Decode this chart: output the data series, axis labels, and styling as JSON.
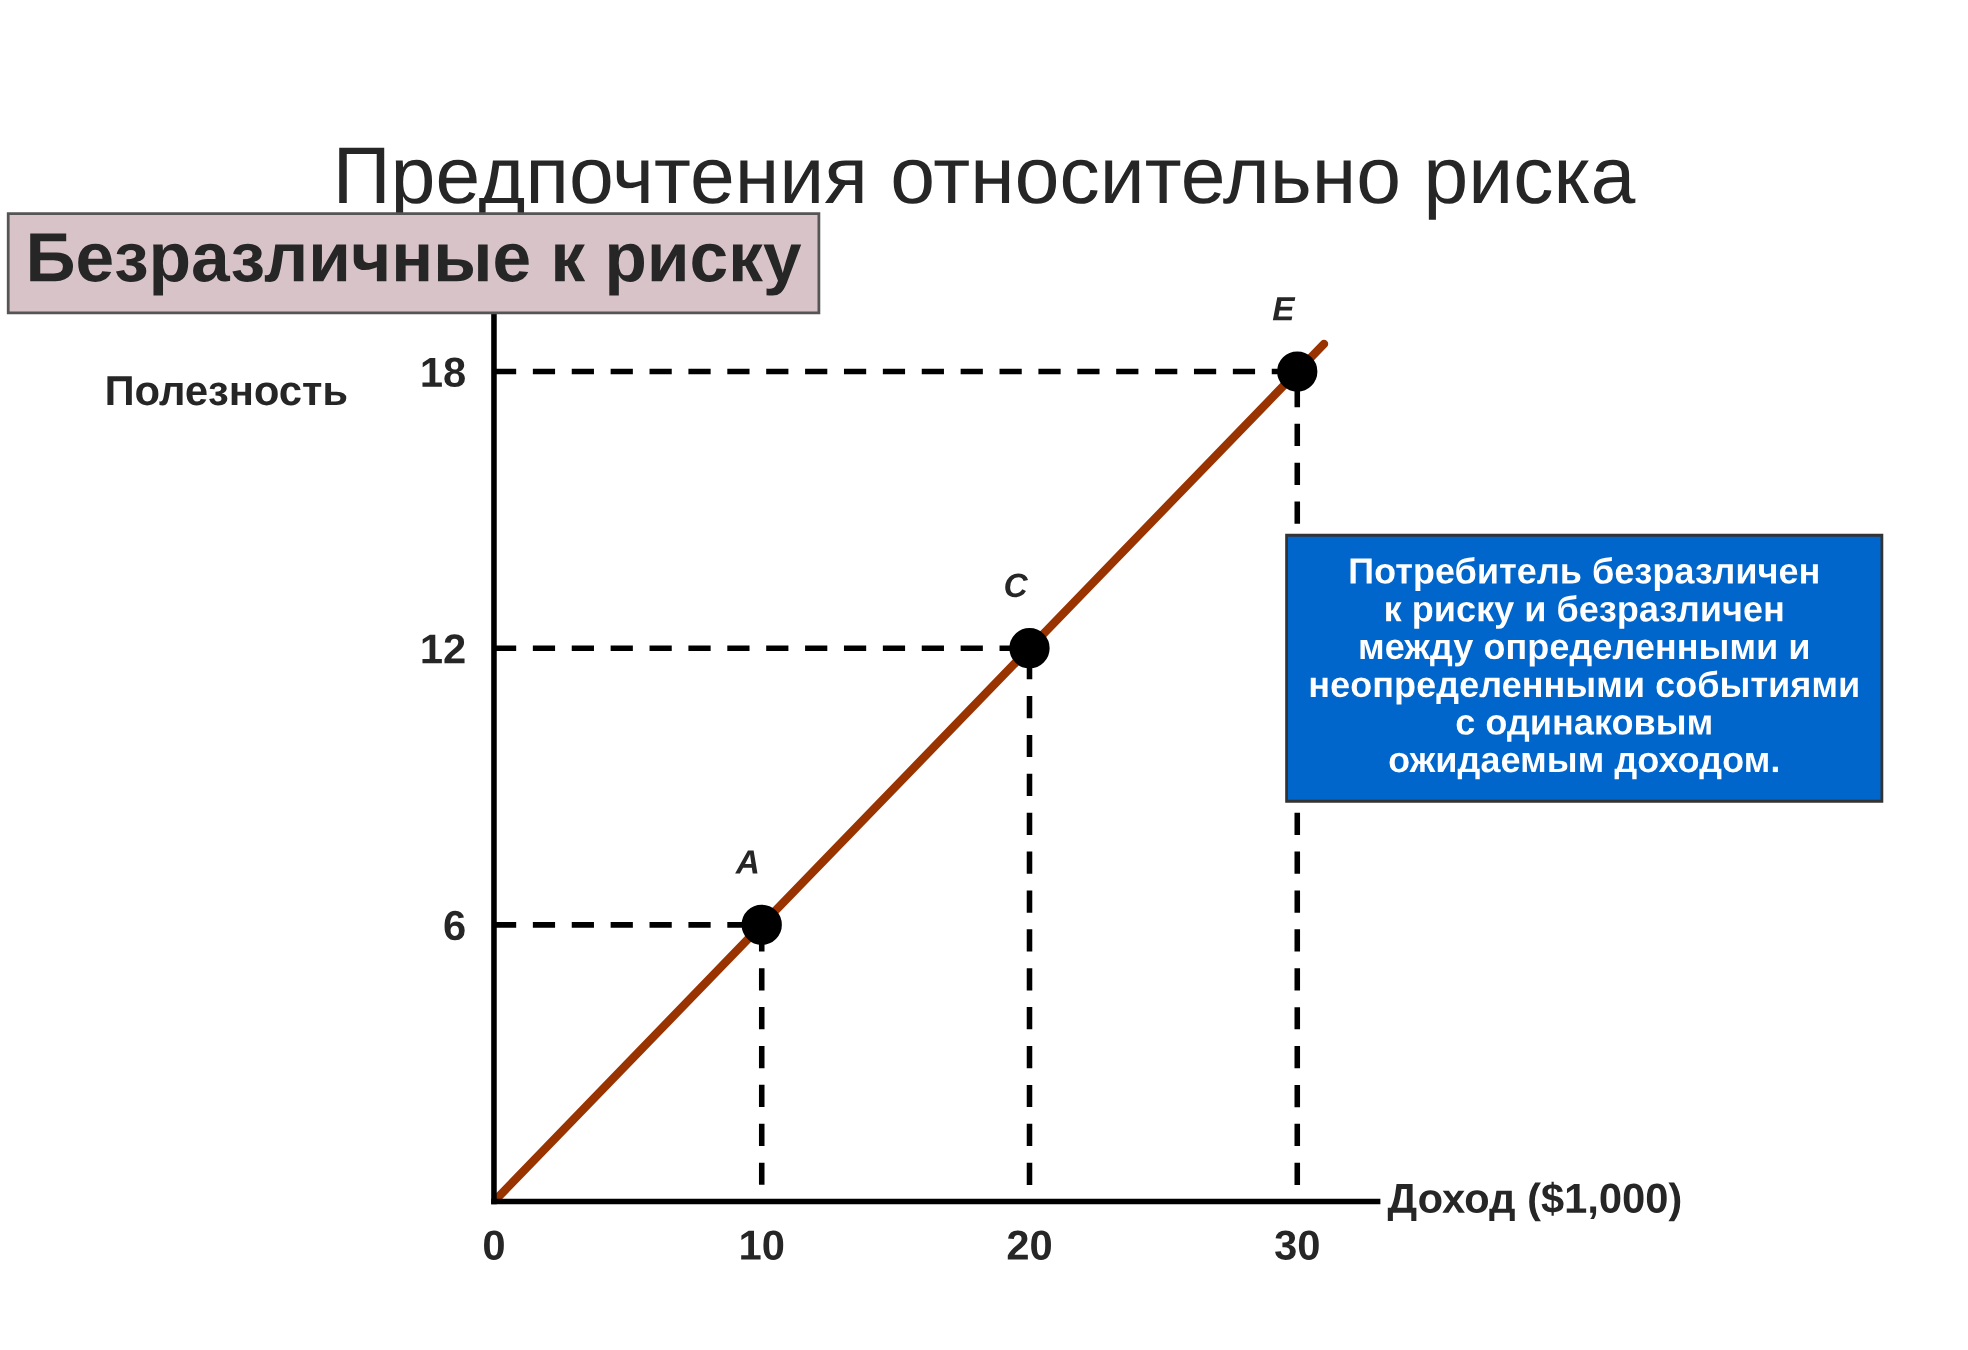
{
  "chart_data": {
    "type": "line",
    "title": "Предпочтения относительно риска",
    "subtitle": "Безразличные к риску",
    "xlabel": "Доход ($1,000)",
    "ylabel": "Полезность",
    "series": [
      {
        "color": "#993300",
        "x": [
          0,
          31
        ],
        "values": [
          0,
          18.6
        ]
      },
      {
        "type": "scatter",
        "marker": "circle",
        "color": "#000000",
        "x": [
          10,
          20,
          30
        ],
        "values": [
          6,
          12,
          18
        ]
      },
      {
        "type": "line",
        "color": "#000000",
        "line_style": "dashed",
        "x": [
          0,
          10,
          10
        ],
        "values": [
          6,
          6,
          0
        ]
      },
      {
        "type": "line",
        "color": "#000000",
        "line_style": "dashed",
        "x": [
          0,
          20,
          20
        ],
        "values": [
          12,
          12,
          0
        ]
      },
      {
        "type": "line",
        "color": "#000000",
        "line_style": "dashed",
        "x": [
          0,
          30,
          30
        ],
        "values": [
          18,
          18,
          0
        ]
      }
    ],
    "annotations": [
      {
        "text": "A",
        "x": 10,
        "y": 6
      },
      {
        "text": "C",
        "x": 20,
        "y": 12
      },
      {
        "text": "E",
        "x": 30,
        "y": 18
      },
      "Потребитель безразличен\nк риску и безразличен\nмежду определенными и\nнеопределенными событиями\nс одинаковым\nожидаемым доходом."
    ],
    "xlim": [
      0,
      33
    ],
    "ylim": [
      0,
      19.5
    ],
    "xticks": [
      0,
      10,
      20,
      30
    ],
    "yticks": [
      6,
      12,
      18
    ],
    "grid": false,
    "legend": false
  }
}
